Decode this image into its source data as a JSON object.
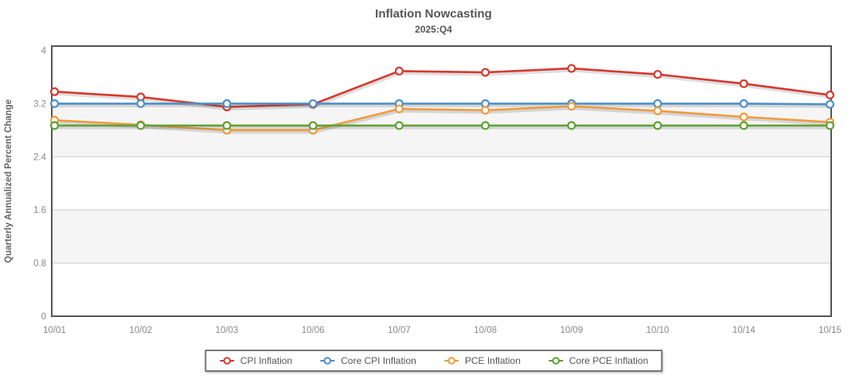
{
  "header": {
    "title": "Inflation Nowcasting",
    "subtitle": "2025:Q4"
  },
  "chart_data": {
    "type": "line",
    "title": "Inflation Nowcasting",
    "subtitle": "2025:Q4",
    "xlabel": "",
    "ylabel": "Quarterly Annualized Percent Change",
    "ylim": [
      0,
      4
    ],
    "yticks": [
      0,
      0.8,
      1.6,
      2.4,
      3.2,
      4
    ],
    "ytick_labels": [
      "0",
      "0.8",
      "1.6",
      "2.4",
      "3.2",
      "4"
    ],
    "x": [
      "10/01",
      "10/02",
      "10/03",
      "10/06",
      "10/07",
      "10/08",
      "10/09",
      "10/10",
      "10/14",
      "10/15"
    ],
    "grid": true,
    "band_fill": "#f5f5f5",
    "gridline_color": "#cccccc",
    "border_color": "#555555",
    "tick_text_color": "#888888",
    "axis_title_color": "#666666",
    "legend_position": "bottom",
    "series": [
      {
        "name": "CPI Inflation",
        "color": "#d53a2f",
        "values": [
          3.38,
          3.3,
          3.15,
          3.19,
          3.69,
          3.67,
          3.73,
          3.64,
          3.5,
          3.33
        ]
      },
      {
        "name": "Core CPI Inflation",
        "color": "#4e90c6",
        "values": [
          3.2,
          3.2,
          3.2,
          3.2,
          3.2,
          3.2,
          3.2,
          3.2,
          3.2,
          3.19
        ]
      },
      {
        "name": "PCE Inflation",
        "color": "#ef9b3f",
        "values": [
          2.95,
          2.88,
          2.8,
          2.8,
          3.12,
          3.1,
          3.16,
          3.09,
          3.0,
          2.92
        ]
      },
      {
        "name": "Core PCE Inflation",
        "color": "#5ea133",
        "values": [
          2.87,
          2.87,
          2.87,
          2.87,
          2.87,
          2.87,
          2.87,
          2.87,
          2.87,
          2.87
        ]
      }
    ]
  }
}
